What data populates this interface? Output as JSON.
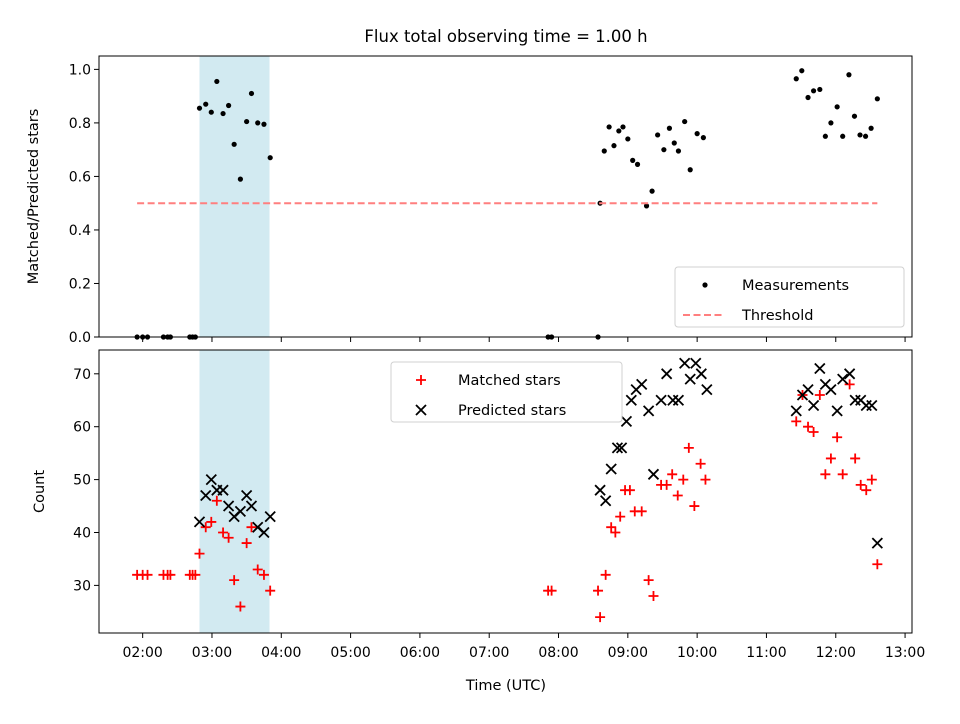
{
  "chart_data": {
    "title": "Flux total observing time = 1.00 h",
    "x_tick_labels": [
      "02:00",
      "03:00",
      "04:00",
      "05:00",
      "06:00",
      "07:00",
      "08:00",
      "09:00",
      "10:00",
      "11:00",
      "12:00",
      "13:00"
    ],
    "xlabel": "Time (UTC)",
    "x_units": "hours UTC",
    "xlim": [
      1.37,
      13.1
    ],
    "highlight_span": [
      2.82,
      3.83
    ],
    "colors": {
      "highlight": "#add8e6",
      "matched": "#ff0000",
      "predicted": "#000000",
      "threshold": "#ff7f7f",
      "measurement": "#000000"
    },
    "panels": [
      {
        "type": "scatter",
        "ylabel": "Matched/Predicted stars",
        "ylim": [
          0,
          1.05
        ],
        "y_ticks": [
          0.0,
          0.2,
          0.4,
          0.6,
          0.8,
          1.0
        ],
        "y_tick_labels": [
          "0.0",
          "0.2",
          "0.4",
          "0.6",
          "0.8",
          "1.0"
        ],
        "legend_position": "lower-right",
        "series": [
          {
            "name": "Measurements",
            "marker": "dot",
            "points": [
              [
                1.92,
                0
              ],
              [
                2.0,
                0
              ],
              [
                2.07,
                0
              ],
              [
                2.3,
                0
              ],
              [
                2.36,
                0
              ],
              [
                2.4,
                0
              ],
              [
                2.68,
                0
              ],
              [
                2.72,
                0
              ],
              [
                2.76,
                0
              ],
              [
                2.82,
                0.855
              ],
              [
                2.91,
                0.87
              ],
              [
                2.99,
                0.84
              ],
              [
                3.07,
                0.955
              ],
              [
                3.16,
                0.835
              ],
              [
                3.24,
                0.865
              ],
              [
                3.32,
                0.72
              ],
              [
                3.41,
                0.59
              ],
              [
                3.5,
                0.805
              ],
              [
                3.57,
                0.91
              ],
              [
                3.66,
                0.8
              ],
              [
                3.75,
                0.795
              ],
              [
                3.84,
                0.67
              ],
              [
                7.85,
                0
              ],
              [
                7.9,
                0
              ],
              [
                8.57,
                0
              ],
              [
                8.6,
                0.5
              ],
              [
                8.66,
                0.695
              ],
              [
                8.73,
                0.785
              ],
              [
                8.8,
                0.715
              ],
              [
                8.87,
                0.77
              ],
              [
                8.93,
                0.785
              ],
              [
                9.0,
                0.74
              ],
              [
                9.07,
                0.66
              ],
              [
                9.14,
                0.645
              ],
              [
                9.27,
                0.49
              ],
              [
                9.35,
                0.545
              ],
              [
                9.43,
                0.755
              ],
              [
                9.52,
                0.7
              ],
              [
                9.6,
                0.78
              ],
              [
                9.67,
                0.725
              ],
              [
                9.73,
                0.695
              ],
              [
                9.82,
                0.805
              ],
              [
                9.9,
                0.625
              ],
              [
                10.0,
                0.76
              ],
              [
                10.09,
                0.745
              ],
              [
                11.43,
                0.965
              ],
              [
                11.51,
                0.995
              ],
              [
                11.6,
                0.895
              ],
              [
                11.68,
                0.92
              ],
              [
                11.77,
                0.925
              ],
              [
                11.85,
                0.75
              ],
              [
                11.93,
                0.8
              ],
              [
                12.02,
                0.86
              ],
              [
                12.1,
                0.75
              ],
              [
                12.19,
                0.98
              ],
              [
                12.27,
                0.825
              ],
              [
                12.35,
                0.755
              ],
              [
                12.43,
                0.75
              ],
              [
                12.51,
                0.78
              ],
              [
                12.6,
                0.89
              ]
            ]
          },
          {
            "name": "Threshold",
            "marker": "dashed-line",
            "points": [
              [
                1.92,
                0.5
              ],
              [
                12.6,
                0.5
              ]
            ]
          }
        ]
      },
      {
        "type": "scatter",
        "ylabel": "Count",
        "ylim": [
          21,
          74.5
        ],
        "y_ticks": [
          30,
          40,
          50,
          60,
          70
        ],
        "y_tick_labels": [
          "30",
          "40",
          "50",
          "60",
          "70"
        ],
        "legend_position": "top-center",
        "series": [
          {
            "name": "Matched stars",
            "marker": "plus",
            "points": [
              [
                1.92,
                32
              ],
              [
                2.0,
                32
              ],
              [
                2.07,
                32
              ],
              [
                2.3,
                32
              ],
              [
                2.36,
                32
              ],
              [
                2.4,
                32
              ],
              [
                2.68,
                32
              ],
              [
                2.72,
                32
              ],
              [
                2.76,
                32
              ],
              [
                2.82,
                36
              ],
              [
                2.91,
                41
              ],
              [
                2.99,
                42
              ],
              [
                3.07,
                46
              ],
              [
                3.16,
                40
              ],
              [
                3.24,
                39
              ],
              [
                3.32,
                31
              ],
              [
                3.41,
                26
              ],
              [
                3.5,
                38
              ],
              [
                3.57,
                41
              ],
              [
                3.66,
                33
              ],
              [
                3.75,
                32
              ],
              [
                3.84,
                29
              ],
              [
                7.85,
                29
              ],
              [
                7.9,
                29
              ],
              [
                8.57,
                29
              ],
              [
                8.6,
                24
              ],
              [
                8.68,
                32
              ],
              [
                8.76,
                41
              ],
              [
                8.82,
                40
              ],
              [
                8.89,
                43
              ],
              [
                8.96,
                48
              ],
              [
                9.03,
                48
              ],
              [
                9.1,
                44
              ],
              [
                9.2,
                44
              ],
              [
                9.3,
                31
              ],
              [
                9.37,
                28
              ],
              [
                9.48,
                49
              ],
              [
                9.56,
                49
              ],
              [
                9.64,
                51
              ],
              [
                9.72,
                47
              ],
              [
                9.8,
                50
              ],
              [
                9.88,
                56
              ],
              [
                9.96,
                45
              ],
              [
                10.05,
                53
              ],
              [
                10.12,
                50
              ],
              [
                11.43,
                61
              ],
              [
                11.52,
                66
              ],
              [
                11.6,
                60
              ],
              [
                11.68,
                59
              ],
              [
                11.77,
                66
              ],
              [
                11.85,
                51
              ],
              [
                11.93,
                54
              ],
              [
                12.02,
                58
              ],
              [
                12.1,
                51
              ],
              [
                12.2,
                68
              ],
              [
                12.28,
                54
              ],
              [
                12.36,
                49
              ],
              [
                12.44,
                48
              ],
              [
                12.52,
                50
              ],
              [
                12.6,
                34
              ]
            ]
          },
          {
            "name": "Predicted stars",
            "marker": "x",
            "points": [
              [
                2.82,
                42
              ],
              [
                2.91,
                47
              ],
              [
                2.99,
                50
              ],
              [
                3.07,
                48
              ],
              [
                3.16,
                48
              ],
              [
                3.24,
                45
              ],
              [
                3.32,
                43
              ],
              [
                3.41,
                44
              ],
              [
                3.5,
                47
              ],
              [
                3.57,
                45
              ],
              [
                3.66,
                41
              ],
              [
                3.75,
                40
              ],
              [
                3.84,
                43
              ],
              [
                8.6,
                48
              ],
              [
                8.68,
                46
              ],
              [
                8.76,
                52
              ],
              [
                8.85,
                56
              ],
              [
                8.91,
                56
              ],
              [
                8.98,
                61
              ],
              [
                9.05,
                65
              ],
              [
                9.12,
                67
              ],
              [
                9.2,
                68
              ],
              [
                9.3,
                63
              ],
              [
                9.37,
                51
              ],
              [
                9.48,
                65
              ],
              [
                9.56,
                70
              ],
              [
                9.65,
                65
              ],
              [
                9.73,
                65
              ],
              [
                9.82,
                72
              ],
              [
                9.9,
                69
              ],
              [
                9.98,
                72
              ],
              [
                10.06,
                70
              ],
              [
                10.14,
                67
              ],
              [
                11.43,
                63
              ],
              [
                11.52,
                66
              ],
              [
                11.6,
                67
              ],
              [
                11.68,
                64
              ],
              [
                11.77,
                71
              ],
              [
                11.85,
                68
              ],
              [
                11.93,
                67
              ],
              [
                12.02,
                63
              ],
              [
                12.1,
                69
              ],
              [
                12.2,
                70
              ],
              [
                12.28,
                65
              ],
              [
                12.36,
                65
              ],
              [
                12.44,
                64
              ],
              [
                12.52,
                64
              ],
              [
                12.6,
                38
              ]
            ]
          }
        ]
      }
    ]
  }
}
